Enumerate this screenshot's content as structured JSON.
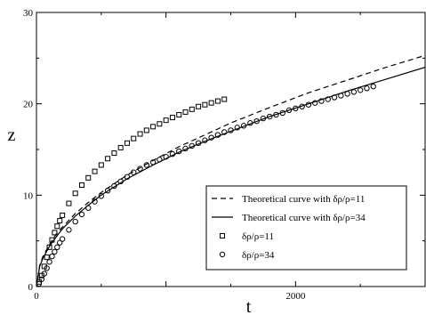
{
  "chart_data": {
    "type": "line",
    "title": "",
    "xlabel": "t",
    "ylabel": "z",
    "xlim": [
      0,
      3000
    ],
    "ylim": [
      0,
      30
    ],
    "x_ticks": [
      0,
      1000,
      2000,
      3000
    ],
    "x_tick_labels": [
      "0",
      "",
      "2000",
      ""
    ],
    "y_ticks": [
      0,
      10,
      20,
      30
    ],
    "y_tick_labels": [
      "0",
      "10",
      "20",
      "30"
    ],
    "grid": false,
    "legend_position": "bottom-right",
    "series": [
      {
        "name": "Theoretical curve  with  δρ/ρ=11",
        "kind": "line",
        "style": "dashed",
        "color": "#000000",
        "x": [
          0,
          25,
          50,
          100,
          150,
          200,
          300,
          400,
          500,
          700,
          900,
          1100,
          1300,
          1500,
          1800,
          2100,
          2400,
          2700,
          3000
        ],
        "y": [
          0,
          2.3,
          3.3,
          4.6,
          5.7,
          6.5,
          8.0,
          9.2,
          10.3,
          12.2,
          13.8,
          15.3,
          16.6,
          17.9,
          19.6,
          21.2,
          22.6,
          24.0,
          25.3
        ]
      },
      {
        "name": "Theoretical curve  with  δρ/ρ=34",
        "kind": "line",
        "style": "solid",
        "color": "#000000",
        "x": [
          0,
          25,
          50,
          100,
          150,
          200,
          300,
          400,
          500,
          700,
          900,
          1100,
          1300,
          1500,
          1800,
          2100,
          2400,
          2700,
          3000
        ],
        "y": [
          0,
          2.2,
          3.1,
          4.4,
          5.4,
          6.3,
          7.7,
          8.9,
          10.0,
          11.8,
          13.3,
          14.7,
          15.9,
          17.0,
          18.6,
          20.0,
          21.4,
          22.7,
          24.0
        ]
      },
      {
        "name": "δρ/ρ=11",
        "kind": "markers",
        "marker": "square",
        "color": "#000000",
        "x": [
          20,
          40,
          60,
          80,
          100,
          120,
          140,
          160,
          180,
          200,
          250,
          300,
          350,
          400,
          450,
          500,
          550,
          600,
          650,
          700,
          750,
          800,
          850,
          900,
          950,
          1000,
          1050,
          1100,
          1150,
          1200,
          1250,
          1300,
          1350,
          1400,
          1450
        ],
        "y": [
          0.5,
          1.2,
          2.2,
          3.2,
          4.3,
          5.1,
          5.9,
          6.6,
          7.2,
          7.8,
          9.1,
          10.2,
          11.1,
          11.9,
          12.6,
          13.3,
          14.0,
          14.6,
          15.2,
          15.7,
          16.2,
          16.7,
          17.1,
          17.5,
          17.8,
          18.2,
          18.5,
          18.8,
          19.1,
          19.4,
          19.7,
          19.9,
          20.1,
          20.3,
          20.5
        ]
      },
      {
        "name": "δρ/ρ=34",
        "kind": "markers",
        "marker": "circle",
        "color": "#000000",
        "x": [
          20,
          40,
          60,
          80,
          100,
          120,
          140,
          160,
          180,
          200,
          250,
          300,
          350,
          400,
          450,
          500,
          550,
          600,
          650,
          700,
          750,
          800,
          850,
          900,
          950,
          1000,
          1050,
          1100,
          1150,
          1200,
          1250,
          1300,
          1350,
          1400,
          1450,
          1500,
          1550,
          1600,
          1650,
          1700,
          1750,
          1800,
          1850,
          1900,
          1950,
          2000,
          2050,
          2100,
          2150,
          2200,
          2250,
          2300,
          2350,
          2400,
          2450,
          2500,
          2550,
          2600
        ],
        "y": [
          0.3,
          0.8,
          1.4,
          2.0,
          2.7,
          3.3,
          3.8,
          4.3,
          4.8,
          5.2,
          6.2,
          7.1,
          7.9,
          8.6,
          9.3,
          9.9,
          10.5,
          11.0,
          11.5,
          12.0,
          12.5,
          12.9,
          13.3,
          13.6,
          13.9,
          14.2,
          14.5,
          14.8,
          15.1,
          15.4,
          15.7,
          16.0,
          16.3,
          16.6,
          16.9,
          17.1,
          17.4,
          17.6,
          17.9,
          18.1,
          18.4,
          18.6,
          18.8,
          19.0,
          19.3,
          19.5,
          19.7,
          19.9,
          20.1,
          20.3,
          20.5,
          20.7,
          20.9,
          21.1,
          21.3,
          21.5,
          21.7,
          21.9
        ]
      }
    ]
  }
}
